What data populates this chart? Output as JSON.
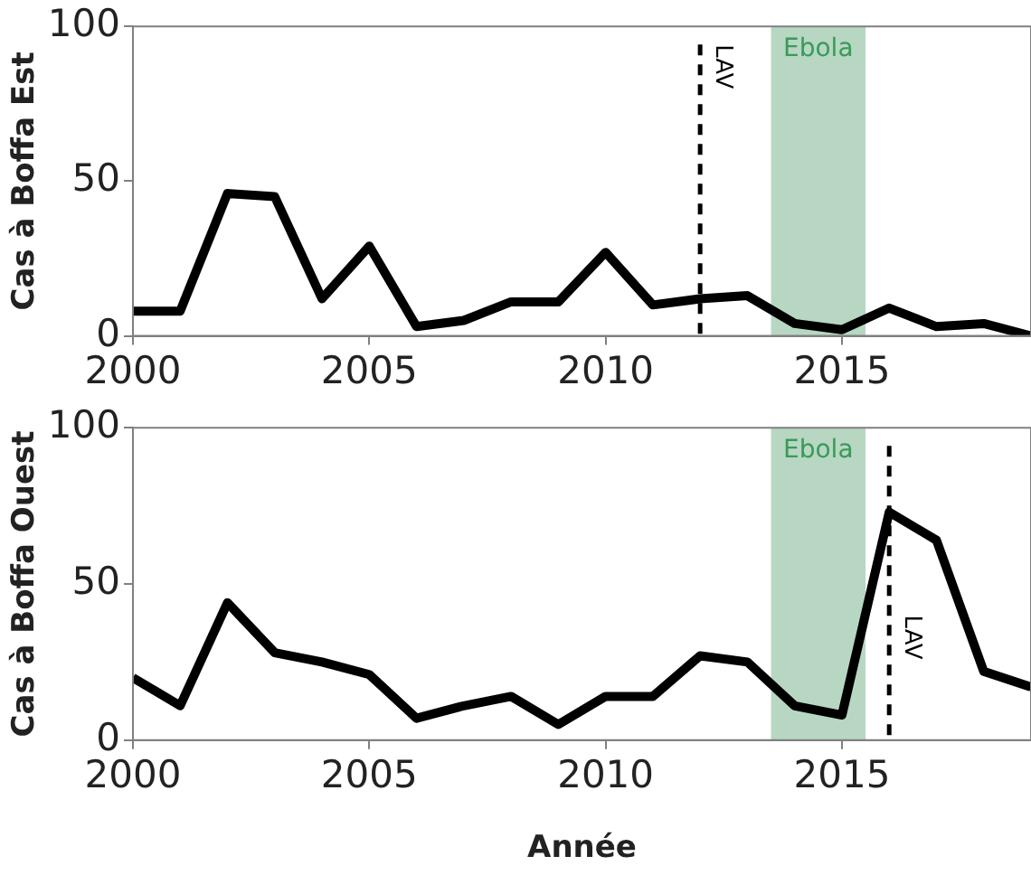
{
  "chart_data": [
    {
      "type": "line",
      "ylabel": "Cas à Boffa Est",
      "x": [
        2000,
        2001,
        2002,
        2003,
        2004,
        2005,
        2006,
        2007,
        2008,
        2009,
        2010,
        2011,
        2012,
        2013,
        2014,
        2015,
        2016,
        2017,
        2018,
        2019
      ],
      "series": [
        {
          "color": "#000000",
          "values": [
            8,
            8,
            46,
            45,
            12,
            29,
            3,
            5,
            11,
            11,
            27,
            10,
            12,
            13,
            4,
            2,
            9,
            3,
            4,
            0
          ]
        }
      ],
      "xlim": [
        2000,
        2019
      ],
      "xticks": [
        2000,
        2005,
        2010,
        2015
      ],
      "ylim": [
        0,
        100
      ],
      "yticks": [
        0,
        50,
        100
      ],
      "ref_lines": [
        {
          "axis": "x",
          "value": 2012,
          "label": "LAV",
          "color": "#000000",
          "line_style": "dashed"
        }
      ],
      "bands": [
        {
          "axis": "x",
          "from": 2013.5,
          "to": 2015.5,
          "label": "Ebola",
          "color": "#b7d7c2"
        }
      ],
      "grid": false,
      "legend": false,
      "marker": "none",
      "line_style": "solid"
    },
    {
      "type": "line",
      "ylabel": "Cas à Boffa Ouest",
      "xlabel": "Année",
      "x": [
        2000,
        2001,
        2002,
        2003,
        2004,
        2005,
        2006,
        2007,
        2008,
        2009,
        2010,
        2011,
        2012,
        2013,
        2014,
        2015,
        2016,
        2017,
        2018,
        2019
      ],
      "series": [
        {
          "color": "#000000",
          "values": [
            20,
            11,
            44,
            28,
            25,
            21,
            7,
            11,
            14,
            5,
            14,
            14,
            27,
            25,
            11,
            8,
            73,
            64,
            22,
            17
          ]
        }
      ],
      "xlim": [
        2000,
        2019
      ],
      "xticks": [
        2000,
        2005,
        2010,
        2015
      ],
      "ylim": [
        0,
        100
      ],
      "yticks": [
        0,
        50,
        100
      ],
      "ref_lines": [
        {
          "axis": "x",
          "value": 2016,
          "label": "LAV",
          "color": "#000000",
          "line_style": "dashed"
        }
      ],
      "bands": [
        {
          "axis": "x",
          "from": 2013.5,
          "to": 2015.5,
          "label": "Ebola",
          "color": "#b7d7c2"
        }
      ],
      "grid": false,
      "legend": false,
      "marker": "none",
      "line_style": "solid"
    }
  ]
}
